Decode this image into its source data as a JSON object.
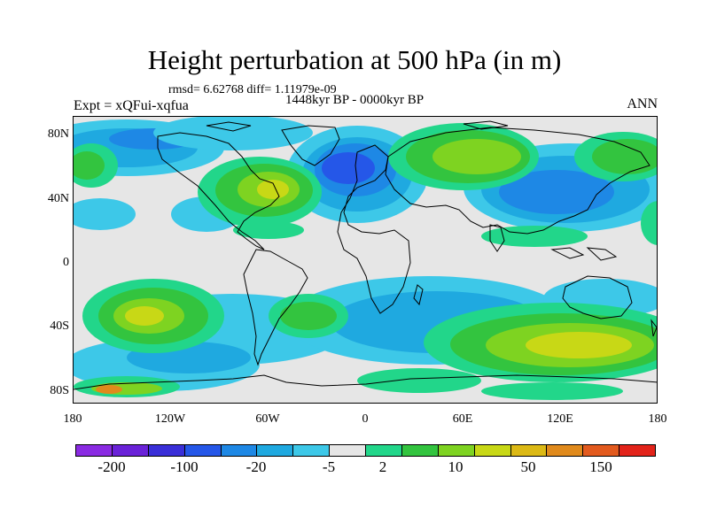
{
  "title": "Height perturbation at 500 hPa (in m)",
  "stats": "rmsd= 6.62768  diff= 1.11979e-09",
  "period": "1448kyr BP - 0000kyr BP",
  "experiment": "Expt = xQFui-xqfua",
  "season": "ANN",
  "lat_labels": [
    "80N",
    "40N",
    "0",
    "40S",
    "80S"
  ],
  "lon_labels": [
    "180",
    "120W",
    "60W",
    "0",
    "60E",
    "120E",
    "180"
  ],
  "colorbar": {
    "colors": [
      "#8a2be2",
      "#6a22d8",
      "#3a2fd8",
      "#2557e8",
      "#1e88e5",
      "#1fa9e0",
      "#3dc8e8",
      "#e6e6e6",
      "#22d68a",
      "#33c43f",
      "#7ed321",
      "#c8d816",
      "#dcb915",
      "#e08a1c",
      "#e25a1e",
      "#e2231a"
    ],
    "labels": [
      "-200",
      "-100",
      "-20",
      "-5",
      "2",
      "10",
      "50",
      "150"
    ]
  }
}
